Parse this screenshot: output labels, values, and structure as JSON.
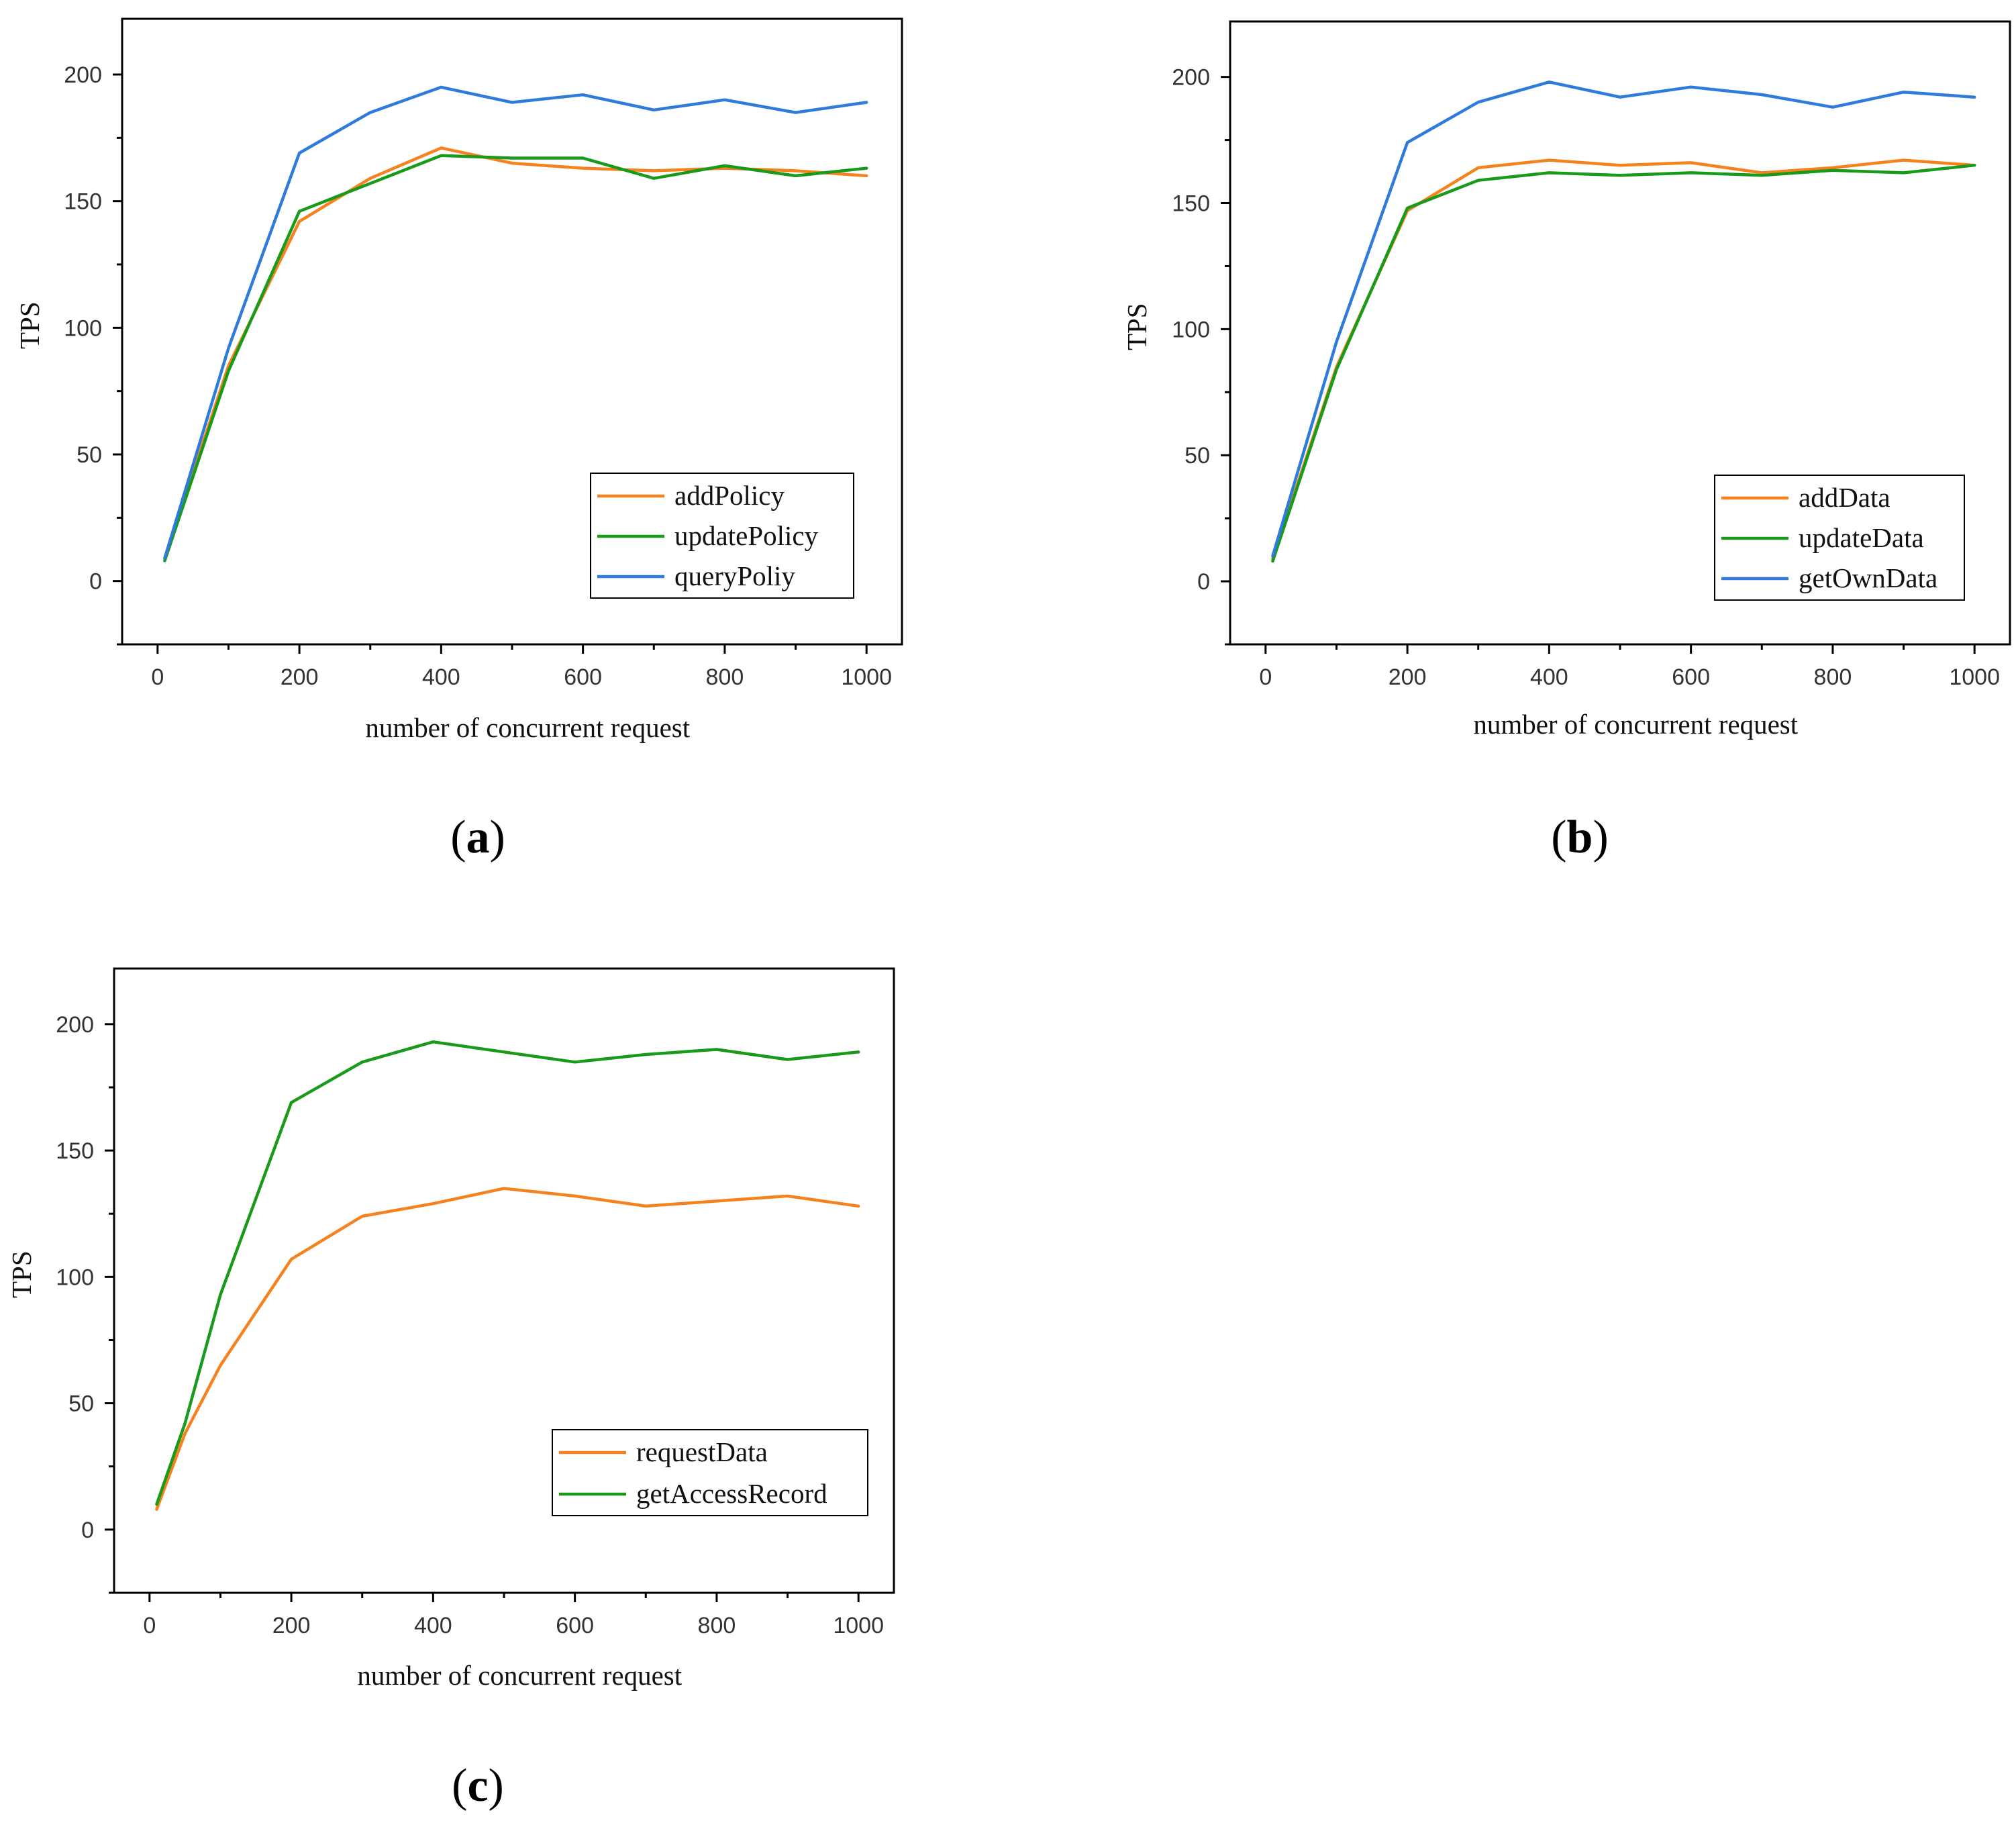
{
  "chart_data": [
    {
      "type": "line",
      "panel": "a",
      "caption_open": "(",
      "caption_letter": "a",
      "caption_close": ")",
      "xlabel": "number of concurrent request",
      "ylabel": "TPS",
      "xlim": [
        -50,
        1050
      ],
      "ylim": [
        -25,
        222
      ],
      "xticks": [
        0,
        200,
        400,
        600,
        800,
        1000
      ],
      "yticks": [
        0,
        50,
        100,
        150,
        200
      ],
      "legend_position": "bottom-right",
      "x": [
        10,
        100,
        200,
        300,
        400,
        500,
        600,
        700,
        800,
        900,
        1000
      ],
      "series": [
        {
          "name": "addPolicy",
          "color": "#f5821f",
          "values": [
            9,
            85,
            142,
            159,
            171,
            165,
            163,
            162,
            163,
            162,
            160
          ]
        },
        {
          "name": "updatePolicy",
          "color": "#1a9a1a",
          "values": [
            8,
            83,
            146,
            157,
            168,
            167,
            167,
            159,
            164,
            160,
            163
          ]
        },
        {
          "name": "queryPoliy",
          "color": "#2f7bdc",
          "values": [
            9,
            92,
            169,
            185,
            195,
            189,
            192,
            186,
            190,
            185,
            189
          ]
        }
      ]
    },
    {
      "type": "line",
      "panel": "b",
      "caption_open": "(",
      "caption_letter": "b",
      "caption_close": ")",
      "xlabel": "number of concurrent request",
      "ylabel": "TPS",
      "xlim": [
        -50,
        1050
      ],
      "ylim": [
        -25,
        222
      ],
      "xticks": [
        0,
        200,
        400,
        600,
        800,
        1000
      ],
      "yticks": [
        0,
        50,
        100,
        150,
        200
      ],
      "legend_position": "bottom-right",
      "x": [
        10,
        100,
        200,
        300,
        400,
        500,
        600,
        700,
        800,
        900,
        1000
      ],
      "series": [
        {
          "name": "addData",
          "color": "#f5821f",
          "values": [
            9,
            85,
            147,
            164,
            167,
            165,
            166,
            162,
            164,
            167,
            165
          ]
        },
        {
          "name": "updateData",
          "color": "#1a9a1a",
          "values": [
            8,
            84,
            148,
            159,
            162,
            161,
            162,
            161,
            163,
            162,
            165
          ]
        },
        {
          "name": "getOwnData",
          "color": "#2f7bdc",
          "values": [
            10,
            95,
            174,
            190,
            198,
            192,
            196,
            193,
            188,
            194,
            192
          ]
        }
      ]
    },
    {
      "type": "line",
      "panel": "c",
      "caption_open": "(",
      "caption_letter": "c",
      "caption_close": ")",
      "xlabel": "number of concurrent request",
      "ylabel": "TPS",
      "xlim": [
        -50,
        1050
      ],
      "ylim": [
        -25,
        222
      ],
      "xticks": [
        0,
        200,
        400,
        600,
        800,
        1000
      ],
      "yticks": [
        0,
        50,
        100,
        150,
        200
      ],
      "legend_position": "bottom-right",
      "x": [
        10,
        50,
        100,
        200,
        300,
        400,
        500,
        600,
        700,
        800,
        900,
        1000
      ],
      "series": [
        {
          "name": "requestData",
          "color": "#f5821f",
          "values": [
            8,
            38,
            65,
            107,
            124,
            129,
            135,
            132,
            128,
            130,
            132,
            128
          ]
        },
        {
          "name": "getAccessRecord",
          "color": "#1a9a1a",
          "values": [
            10,
            42,
            93,
            169,
            185,
            193,
            189,
            185,
            188,
            190,
            186,
            189
          ]
        }
      ]
    }
  ]
}
